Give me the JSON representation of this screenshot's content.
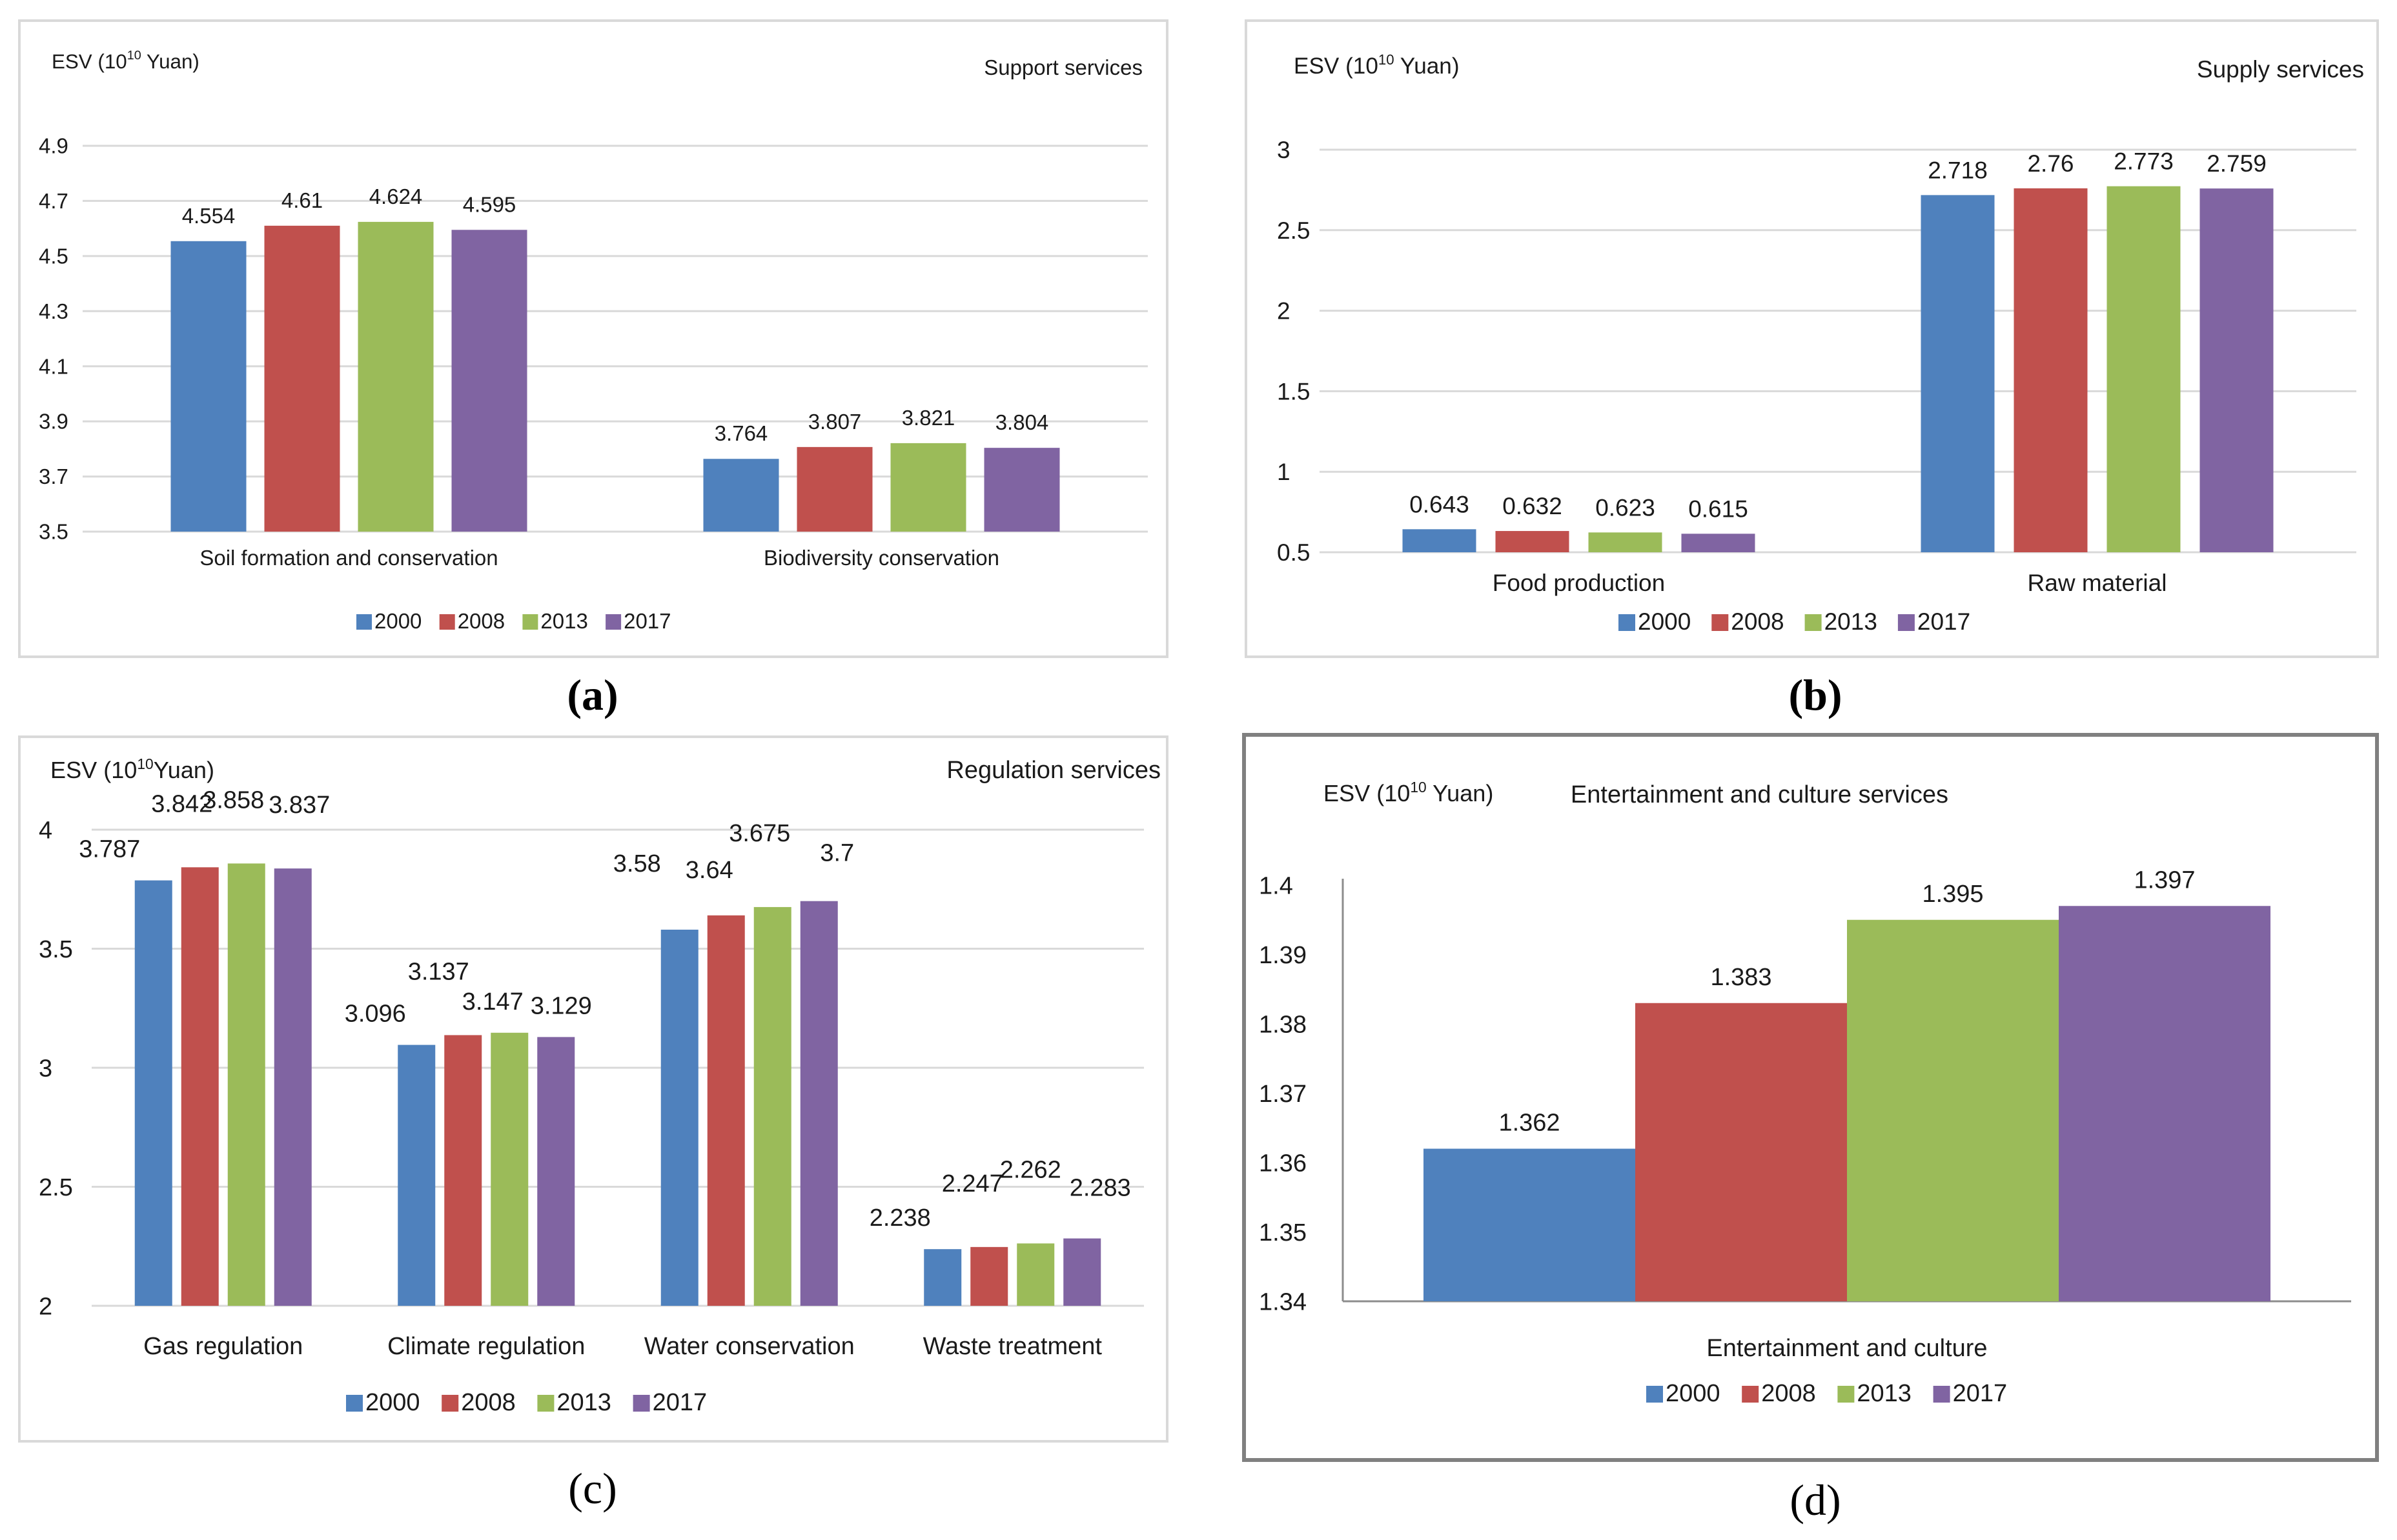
{
  "legend_colors": {
    "2000": "#4f81bd",
    "2008": "#c0504d",
    "2013": "#9bbb59",
    "2017": "#8064a2"
  },
  "captions": {
    "a": "(a)",
    "b": "(b)",
    "c": "(c)",
    "d": "(d)"
  },
  "chart_data": [
    {
      "id": "a",
      "type": "bar",
      "title": "Support services",
      "ylabel": "ESV (10¹⁰ Yuan)",
      "ylabel_parts": {
        "prefix": "ESV (10",
        "sup": "10",
        "suffix": " Yuan)"
      },
      "ylim": [
        3.5,
        4.9
      ],
      "yticks": [
        3.5,
        3.7,
        3.9,
        4.1,
        4.3,
        4.5,
        4.7,
        4.9
      ],
      "ytick_labels": [
        "3.5",
        "3.7",
        "3.9",
        "4.1",
        "4.3",
        "4.5",
        "4.7",
        "4.9"
      ],
      "categories": [
        "Soil formation and conservation",
        "Biodiversity conservation"
      ],
      "series": [
        {
          "name": "2000",
          "values": [
            4.554,
            3.764
          ]
        },
        {
          "name": "2008",
          "values": [
            4.61,
            3.807
          ]
        },
        {
          "name": "2013",
          "values": [
            4.624,
            3.821
          ]
        },
        {
          "name": "2017",
          "values": [
            4.595,
            3.804
          ]
        }
      ],
      "grid": true,
      "legend": "bottom"
    },
    {
      "id": "b",
      "type": "bar",
      "title": "Supply services",
      "ylabel": "ESV (10¹⁰ Yuan)",
      "ylabel_parts": {
        "prefix": "ESV (10",
        "sup": "10",
        "suffix": " Yuan)"
      },
      "ylim": [
        0.5,
        3
      ],
      "yticks": [
        0.5,
        1,
        1.5,
        2,
        2.5,
        3
      ],
      "ytick_labels": [
        "0.5",
        "1",
        "1.5",
        "2",
        "2.5",
        "3"
      ],
      "categories": [
        "Food production",
        "Raw material"
      ],
      "series": [
        {
          "name": "2000",
          "values": [
            0.643,
            2.718
          ]
        },
        {
          "name": "2008",
          "values": [
            0.632,
            2.76
          ]
        },
        {
          "name": "2013",
          "values": [
            0.623,
            2.773
          ]
        },
        {
          "name": "2017",
          "values": [
            0.615,
            2.759
          ]
        }
      ],
      "grid": true,
      "legend": "bottom"
    },
    {
      "id": "c",
      "type": "bar",
      "title": "Regulation services",
      "ylabel": "ESV (10¹⁰Yuan)",
      "ylabel_parts": {
        "prefix": "ESV (10",
        "sup": "10",
        "suffix": "Yuan)"
      },
      "ylim": [
        2,
        4
      ],
      "yticks": [
        2,
        2.5,
        3,
        3.5,
        4
      ],
      "ytick_labels": [
        "2",
        "2.5",
        "3",
        "3.5",
        "4"
      ],
      "categories": [
        "Gas regulation",
        "Climate regulation",
        "Water conservation",
        "Waste treatment"
      ],
      "series": [
        {
          "name": "2000",
          "values": [
            3.787,
            3.096,
            3.58,
            2.238
          ]
        },
        {
          "name": "2008",
          "values": [
            3.842,
            3.137,
            3.64,
            2.247
          ]
        },
        {
          "name": "2013",
          "values": [
            3.858,
            3.147,
            3.675,
            2.262
          ]
        },
        {
          "name": "2017",
          "values": [
            3.837,
            3.129,
            3.7,
            2.283
          ]
        }
      ],
      "grid": true,
      "legend": "bottom"
    },
    {
      "id": "d",
      "type": "bar",
      "title": "Entertainment and culture services",
      "ylabel": "ESV (10¹⁰ Yuan)",
      "ylabel_parts": {
        "prefix": "ESV (10",
        "sup": "10",
        "suffix": " Yuan)"
      },
      "ylim": [
        1.34,
        1.4
      ],
      "yticks": [
        1.34,
        1.35,
        1.36,
        1.37,
        1.38,
        1.39,
        1.4
      ],
      "ytick_labels": [
        "1.34",
        "1.35",
        "1.36",
        "1.37",
        "1.38",
        "1.39",
        "1.4"
      ],
      "categories": [
        "Entertainment and culture"
      ],
      "series": [
        {
          "name": "2000",
          "values": [
            1.362
          ]
        },
        {
          "name": "2008",
          "values": [
            1.383
          ]
        },
        {
          "name": "2013",
          "values": [
            1.395
          ]
        },
        {
          "name": "2017",
          "values": [
            1.397
          ]
        }
      ],
      "grid": false,
      "legend": "bottom"
    }
  ]
}
